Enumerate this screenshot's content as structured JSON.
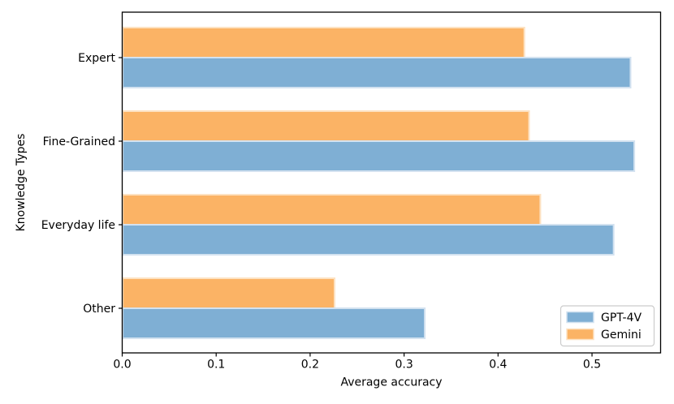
{
  "chart_data": {
    "type": "bar",
    "orientation": "horizontal",
    "title": "",
    "xlabel": "Average accuracy",
    "ylabel": "Knowledge Types",
    "categories": [
      "Expert",
      "Fine-Grained",
      "Everyday life",
      "Other"
    ],
    "series": [
      {
        "name": "GPT-4V",
        "color": "#7fafd4",
        "edge_color": "#d3e2f0",
        "values": [
          0.541,
          0.545,
          0.523,
          0.322
        ]
      },
      {
        "name": "Gemini",
        "color": "#fbb365",
        "edge_color": "#fde2c2",
        "values": [
          0.428,
          0.433,
          0.445,
          0.226
        ]
      }
    ],
    "group_top_to_bottom": [
      "Gemini",
      "GPT-4V"
    ],
    "xlim": [
      0,
      0.573
    ],
    "xticks": [
      0,
      0.1,
      0.2,
      0.3,
      0.4,
      0.5
    ],
    "xtick_labels": [
      "0.0",
      "0.1",
      "0.2",
      "0.3",
      "0.4",
      "0.5"
    ],
    "grid": false,
    "legend": {
      "position": "lower right",
      "entries": [
        "GPT-4V",
        "Gemini"
      ]
    },
    "text_color": "#000000",
    "spine_color": "#000000",
    "legend_border_color": "#cccccc",
    "legend_background": "#ffffff"
  }
}
